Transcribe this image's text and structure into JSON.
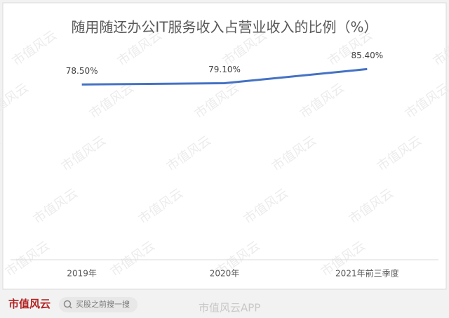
{
  "chart_data": {
    "type": "line",
    "title": "随用随还办公IT服务收入占营业收入的比例（%）",
    "categories": [
      "2019年",
      "2020年",
      "2021年前三季度"
    ],
    "values": [
      78.5,
      79.1,
      85.4
    ],
    "value_labels": [
      "78.50%",
      "79.10%",
      "85.40%"
    ],
    "color": "#4472c4",
    "ylim": [
      0,
      100
    ]
  },
  "watermark": "市值风云",
  "footer": {
    "brand": "市值风云",
    "search": "买股之前搜一搜",
    "app": "市值风云APP"
  }
}
